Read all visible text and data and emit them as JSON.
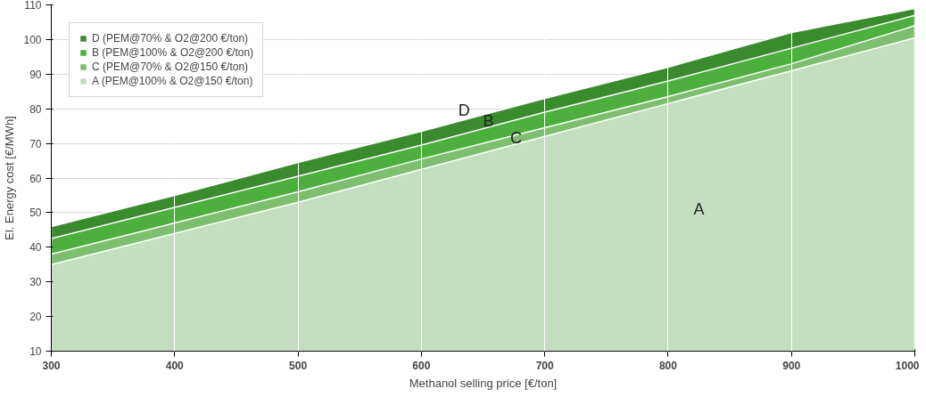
{
  "chart_data": {
    "type": "area",
    "xlabel": "Methanol selling price [€/ton]",
    "ylabel": "El. Energy cost [€/MWh]",
    "x": [
      300,
      400,
      500,
      600,
      700,
      800,
      900,
      1000
    ],
    "series": [
      {
        "name": "D (PEM@70% & O2@200 €/ton)",
        "color": "#3a8a2e",
        "values": [
          46,
          55,
          64.5,
          73.5,
          83,
          92,
          102,
          109
        ]
      },
      {
        "name": "B (PEM@100% & O2@200 €/ton)",
        "color": "#4caf3e",
        "values": [
          42.5,
          51.5,
          60.5,
          69.5,
          79,
          88,
          97.5,
          107
        ]
      },
      {
        "name": "C (PEM@70% & O2@150 €/ton)",
        "color": "#7dbf6f",
        "values": [
          38,
          47,
          56,
          65.5,
          74.5,
          83.5,
          93,
          104
        ]
      },
      {
        "name": "A (PEM@100% & O2@150 €/ton)",
        "color": "#c3dfbf",
        "values": [
          35,
          44,
          53,
          62.5,
          72,
          81.5,
          91,
          100.5
        ]
      }
    ],
    "annotations": [
      {
        "text": "D",
        "x": 630,
        "y": 77
      },
      {
        "text": "B",
        "x": 650,
        "y": 74
      },
      {
        "text": "C",
        "x": 672,
        "y": 69
      },
      "A"
    ],
    "xlim": [
      300,
      1000
    ],
    "ylim": [
      10,
      110
    ],
    "xticks": [
      300,
      400,
      500,
      600,
      700,
      800,
      900,
      1000
    ],
    "yticks": [
      10,
      20,
      30,
      40,
      50,
      60,
      70,
      80,
      90,
      100,
      110
    ],
    "grid": true,
    "legend": "top left"
  }
}
